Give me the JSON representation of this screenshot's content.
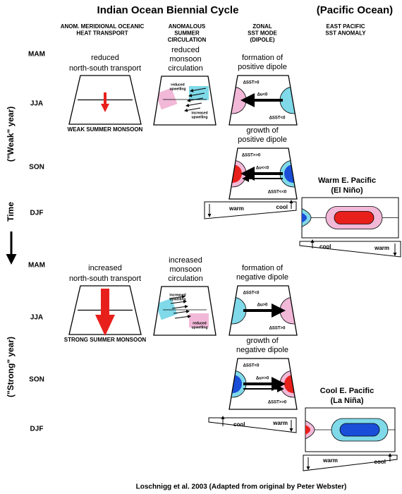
{
  "title": "Indian Ocean Biennial Cycle",
  "pacific_title": "(Pacific Ocean)",
  "columns": [
    [
      "ANOM. MERIDIONAL OCEANIC",
      "HEAT TRANSPORT"
    ],
    [
      "ANOMALOUS",
      "SUMMER",
      "CIRCULATION"
    ],
    [
      "ZONAL",
      "SST MODE",
      "(DIPOLE)"
    ],
    [
      "EAST PACIFIC",
      "SST ANOMALY"
    ]
  ],
  "seasons": [
    "MAM",
    "JJA",
    "SON",
    "DJF",
    "MAM",
    "JJA",
    "SON",
    "DJF"
  ],
  "weak_year": "(\"Weak\" year)",
  "time": "Time",
  "strong_year": "(\"Strong\" year)",
  "weak": {
    "transport": {
      "caption": [
        "reduced",
        "north-south transport"
      ],
      "monsoon": "WEAK SUMMER MONSOON"
    },
    "circulation": {
      "caption": [
        "reduced",
        "monsoon",
        "circulation"
      ],
      "left": [
        "reduced",
        "upwelling"
      ],
      "right": [
        "increased",
        "upwelling"
      ]
    },
    "formation": {
      "caption": [
        "formation of",
        "positive dipole"
      ],
      "sst_left": "ΔSST>0",
      "wind": "Δu<0",
      "sst_right": "ΔSST<0"
    },
    "growth": {
      "caption": [
        "growth of",
        "positive dipole"
      ],
      "sst_left": "ΔSST>>0",
      "wind": "Δu<<0",
      "sst_right": "ΔSST<<0"
    },
    "thermocline": {
      "left": "warm",
      "right": "cool"
    },
    "pacific": {
      "caption": [
        "Warm E. Pacific",
        "(El Niño)"
      ],
      "left": "cool",
      "right": "warm"
    }
  },
  "strong": {
    "transport": {
      "caption": [
        "increased",
        "north-south transport"
      ],
      "monsoon": "STRONG SUMMER MONSOON"
    },
    "circulation": {
      "caption": [
        "increased",
        "monsoon",
        "circulation"
      ],
      "left": [
        "increased",
        "upwelling"
      ],
      "right": [
        "reduced",
        "upwelling"
      ]
    },
    "formation": {
      "caption": [
        "formation of",
        "negative dipole"
      ],
      "sst_left": "ΔSST<0",
      "wind": "Δu>0",
      "sst_right": "ΔSST>0"
    },
    "growth": {
      "caption": [
        "growth of",
        "negative dipole"
      ],
      "sst_left": "ΔSST<0",
      "wind": "Δu>>0",
      "sst_right": "ΔSST>>0"
    },
    "thermocline": {
      "left": "cool",
      "right": "warm"
    },
    "pacific": {
      "caption": [
        "Cool E. Pacific",
        "(La Niña)"
      ],
      "left": "warm",
      "right": "cool"
    }
  },
  "credit": "Loschnigg et al. 2003 (Adapted from original by Peter Webster)"
}
